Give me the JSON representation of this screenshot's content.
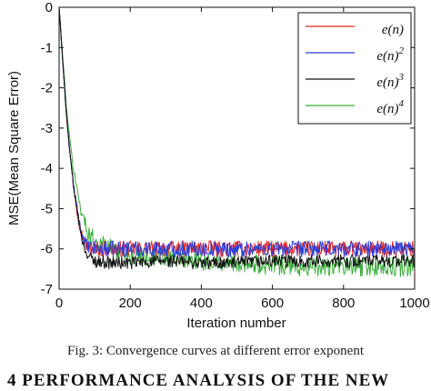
{
  "chart_data": {
    "type": "line",
    "title": "",
    "xlabel": "Iteration number",
    "ylabel": "MSE(Mean Square Error)",
    "xlim": [
      0,
      1000
    ],
    "ylim": [
      -7,
      0
    ],
    "xticks": [
      "0",
      "200",
      "400",
      "600",
      "800",
      "1000"
    ],
    "yticks": [
      "0",
      "-1",
      "-2",
      "-3",
      "-4",
      "-5",
      "-6",
      "-7"
    ],
    "legend_position": "top-right",
    "x": [
      0,
      10,
      20,
      30,
      40,
      50,
      60,
      70,
      80,
      90,
      100,
      150,
      200,
      300,
      400,
      500,
      600,
      700,
      800,
      900,
      1000
    ],
    "series": [
      {
        "name": "e(n)",
        "base": "e(n)",
        "exp": "",
        "color": "#e0262b",
        "values": [
          0,
          -1.3,
          -2.6,
          -3.6,
          -4.4,
          -5.0,
          -5.5,
          -5.8,
          -5.95,
          -6.0,
          -6.0,
          -6.0,
          -6.0,
          -6.0,
          -6.0,
          -6.0,
          -6.0,
          -6.0,
          -6.0,
          -6.0,
          -6.0
        ]
      },
      {
        "name": "e(n)^2",
        "base": "e(n)",
        "exp": "2",
        "color": "#2b3fd8",
        "values": [
          0,
          -1.3,
          -2.6,
          -3.6,
          -4.4,
          -5.0,
          -5.5,
          -5.8,
          -5.95,
          -6.0,
          -6.0,
          -6.0,
          -6.0,
          -6.0,
          -6.0,
          -6.0,
          -6.0,
          -6.0,
          -6.0,
          -6.0,
          -6.0
        ]
      },
      {
        "name": "e(n)^3",
        "base": "e(n)",
        "exp": "3",
        "color": "#111111",
        "values": [
          0,
          -1.3,
          -2.6,
          -3.6,
          -4.4,
          -5.0,
          -5.55,
          -5.95,
          -6.15,
          -6.25,
          -6.3,
          -6.35,
          -6.35,
          -6.3,
          -6.35,
          -6.35,
          -6.3,
          -6.3,
          -6.3,
          -6.3,
          -6.3
        ]
      },
      {
        "name": "e(n)^4",
        "base": "e(n)",
        "exp": "4",
        "color": "#3cae3c",
        "values": [
          0,
          -1.2,
          -2.4,
          -3.3,
          -4.0,
          -4.5,
          -4.95,
          -5.3,
          -5.55,
          -5.7,
          -5.8,
          -6.0,
          -6.15,
          -6.25,
          -6.3,
          -6.35,
          -6.4,
          -6.45,
          -6.45,
          -6.45,
          -6.45
        ]
      }
    ]
  },
  "caption": "Fig. 3: Convergence curves at different error exponent",
  "next_heading": "4   PERFORMANCE ANALYSIS OF THE NEW"
}
